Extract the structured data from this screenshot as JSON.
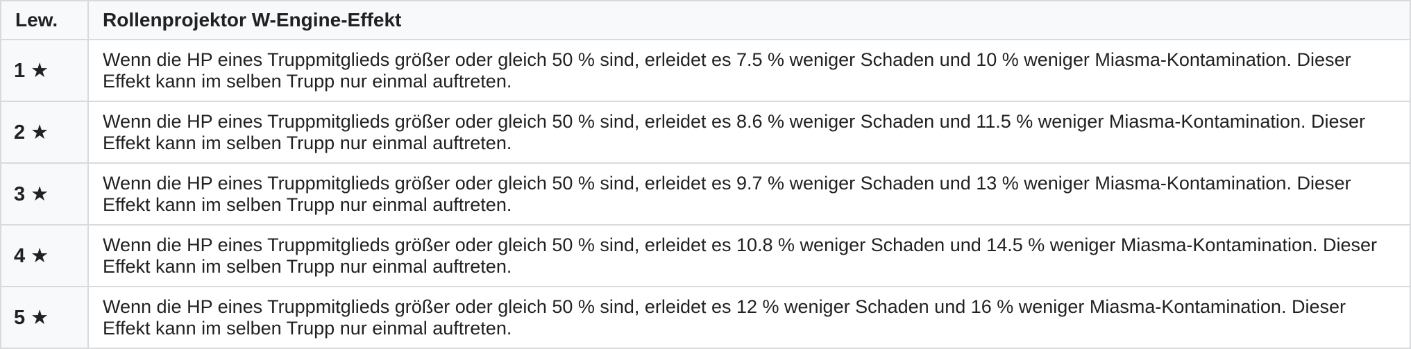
{
  "colors": {
    "header_bg": "#f8f9fa",
    "level_col_bg": "#f8f9fa",
    "row_bg": "#ffffff",
    "border": "#d9dadc",
    "text": "#202122"
  },
  "table": {
    "columns": {
      "level": "Lew.",
      "effect": "Rollenprojektor W-Engine-Effekt"
    },
    "rows": [
      {
        "level": "1 ★",
        "effect": "Wenn die HP eines Truppmitglieds größer oder gleich 50 % sind, erleidet es 7.5 % weniger Schaden und 10 % weniger Miasma-Kontamination. Dieser Effekt kann im selben Trupp nur einmal auftreten."
      },
      {
        "level": "2 ★",
        "effect": "Wenn die HP eines Truppmitglieds größer oder gleich 50 % sind, erleidet es 8.6 % weniger Schaden und 11.5 % weniger Miasma-Kontamination. Dieser Effekt kann im selben Trupp nur einmal auftreten."
      },
      {
        "level": "3 ★",
        "effect": "Wenn die HP eines Truppmitglieds größer oder gleich 50 % sind, erleidet es 9.7 % weniger Schaden und 13 % weniger Miasma-Kontamination. Dieser Effekt kann im selben Trupp nur einmal auftreten."
      },
      {
        "level": "4 ★",
        "effect": "Wenn die HP eines Truppmitglieds größer oder gleich 50 % sind, erleidet es 10.8 % weniger Schaden und 14.5 % weniger Miasma-Kontamination. Dieser Effekt kann im selben Trupp nur einmal auftreten."
      },
      {
        "level": "5 ★",
        "effect": "Wenn die HP eines Truppmitglieds größer oder gleich 50 % sind, erleidet es 12 % weniger Schaden und 16 % weniger Miasma-Kontamination. Dieser Effekt kann im selben Trupp nur einmal auftreten."
      }
    ]
  }
}
